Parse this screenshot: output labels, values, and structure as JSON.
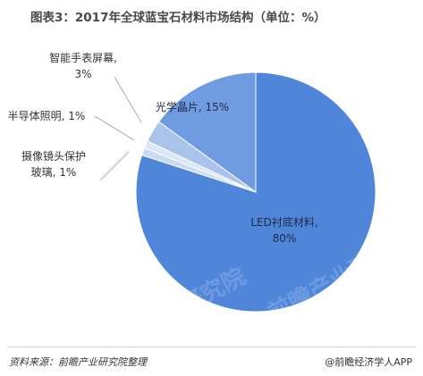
{
  "title": "图表3：2017年全球蓝宝石材料市场结构（单位：%）",
  "chart_data": {
    "type": "pie",
    "title": "图表3：2017年全球蓝宝石材料市场结构（单位：%）",
    "slices": [
      {
        "label": "LED衬底材料",
        "value": 80,
        "value_label": "80%",
        "color": "#4f86d9"
      },
      {
        "label": "摄像镜头保护玻璃",
        "value": 1,
        "value_label": "1%",
        "color": "#c9daf2"
      },
      {
        "label": "半导体照明",
        "value": 1,
        "value_label": "1%",
        "color": "#dbe6f6"
      },
      {
        "label": "智能手表屏幕",
        "value": 3,
        "value_label": "3%",
        "color": "#a9c3ea"
      },
      {
        "label": "光学晶片",
        "value": 15,
        "value_label": "15%",
        "color": "#6f9be0"
      }
    ],
    "label_lines": [
      [
        "LED衬底材料,",
        "80%"
      ],
      [
        "摄像镜头保护",
        "玻璃, 1%"
      ],
      [
        "半导体照明, 1%"
      ],
      [
        "智能手表屏幕,",
        "3%"
      ],
      [
        "光学晶片, 15%"
      ]
    ]
  },
  "watermark": "前瞻产业研究院",
  "footer": {
    "source": "资料来源：前瞻产业研究院整理",
    "brand": "@前瞻经济学人APP"
  }
}
